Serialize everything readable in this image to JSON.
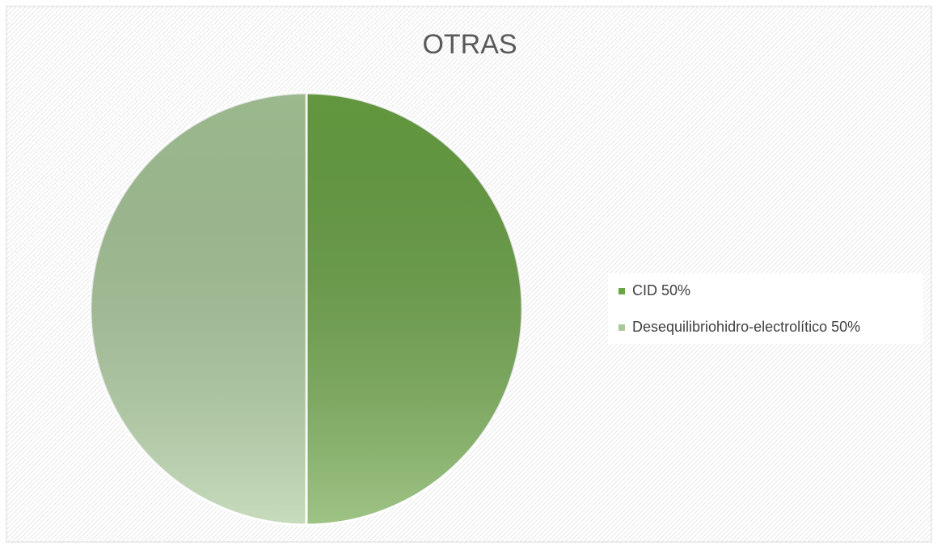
{
  "chart_data": {
    "type": "pie",
    "title": "OTRAS",
    "categories": [
      "CID",
      "Desequilibriohidro-electrolítico"
    ],
    "values": [
      50,
      50
    ],
    "value_labels": [
      "50%",
      "50%"
    ],
    "colors": [
      "#6aa444",
      "#a9c99a"
    ],
    "legend": "right"
  }
}
